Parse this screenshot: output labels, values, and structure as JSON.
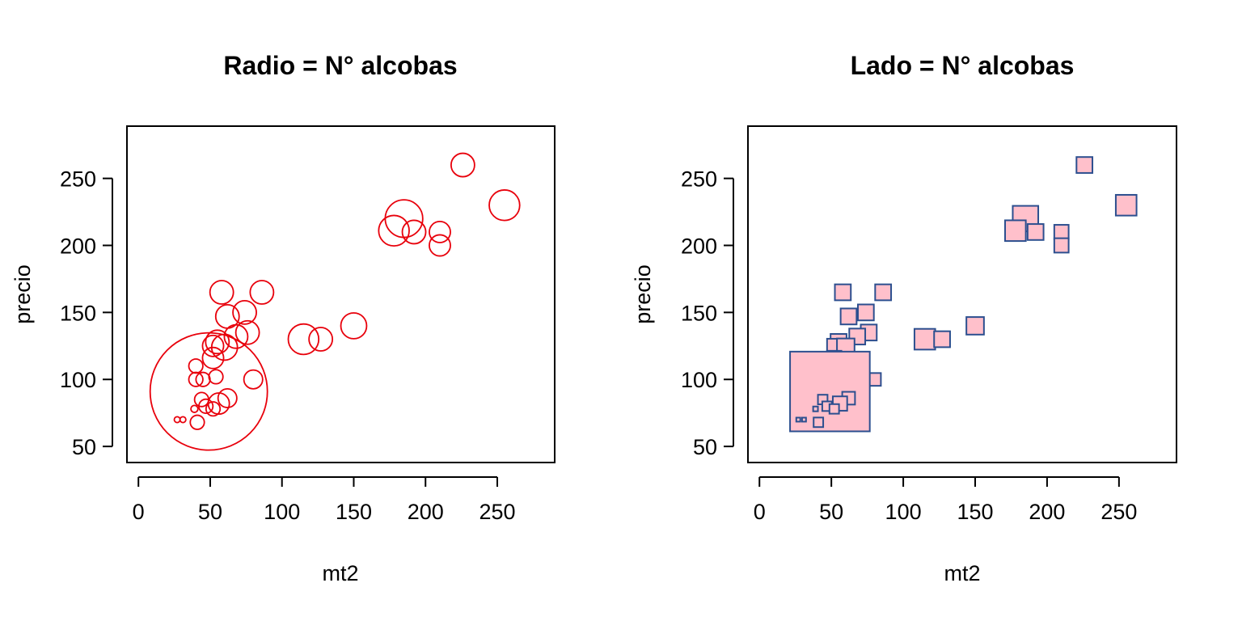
{
  "chart_data": [
    {
      "type": "scatter",
      "title": "Radio = N° alcobas",
      "xlabel": "mt2",
      "ylabel": "precio",
      "xlim": [
        -8,
        290
      ],
      "ylim": [
        38,
        289
      ],
      "xticks": [
        0,
        50,
        100,
        150,
        200,
        250
      ],
      "yticks": [
        50,
        100,
        150,
        200,
        250
      ],
      "marker": "circle",
      "size_encodes": "N° alcobas",
      "color": "#e8000b",
      "fill": "none",
      "points": [
        {
          "x": 226,
          "y": 260,
          "s": 1.0
        },
        {
          "x": 255,
          "y": 230,
          "s": 1.3
        },
        {
          "x": 185,
          "y": 220,
          "s": 1.6
        },
        {
          "x": 178,
          "y": 211,
          "s": 1.3
        },
        {
          "x": 192,
          "y": 210,
          "s": 1.0
        },
        {
          "x": 210,
          "y": 210,
          "s": 0.9
        },
        {
          "x": 210,
          "y": 200,
          "s": 0.9
        },
        {
          "x": 58,
          "y": 165,
          "s": 1.0
        },
        {
          "x": 86,
          "y": 165,
          "s": 1.0
        },
        {
          "x": 74,
          "y": 150,
          "s": 1.0
        },
        {
          "x": 62,
          "y": 147,
          "s": 1.0
        },
        {
          "x": 150,
          "y": 140,
          "s": 1.1
        },
        {
          "x": 76,
          "y": 135,
          "s": 1.0
        },
        {
          "x": 68,
          "y": 132,
          "s": 1.0
        },
        {
          "x": 115,
          "y": 130,
          "s": 1.3
        },
        {
          "x": 127,
          "y": 130,
          "s": 1.0
        },
        {
          "x": 55,
          "y": 128,
          "s": 1.0
        },
        {
          "x": 52,
          "y": 125,
          "s": 0.9
        },
        {
          "x": 60,
          "y": 124,
          "s": 1.1
        },
        {
          "x": 52,
          "y": 116,
          "s": 0.9
        },
        {
          "x": 40,
          "y": 110,
          "s": 0.6
        },
        {
          "x": 54,
          "y": 102,
          "s": 0.6
        },
        {
          "x": 40,
          "y": 100,
          "s": 0.6
        },
        {
          "x": 45,
          "y": 100,
          "s": 0.6
        },
        {
          "x": 80,
          "y": 100,
          "s": 0.8
        },
        {
          "x": 49,
          "y": 91,
          "s": 5.0
        },
        {
          "x": 62,
          "y": 86,
          "s": 0.8
        },
        {
          "x": 44,
          "y": 85,
          "s": 0.6
        },
        {
          "x": 56,
          "y": 82,
          "s": 0.9
        },
        {
          "x": 47,
          "y": 80,
          "s": 0.6
        },
        {
          "x": 52,
          "y": 78,
          "s": 0.6
        },
        {
          "x": 39,
          "y": 78,
          "s": 0.3
        },
        {
          "x": 41,
          "y": 68,
          "s": 0.6
        },
        {
          "x": 27,
          "y": 70,
          "s": 0.25
        },
        {
          "x": 31,
          "y": 70,
          "s": 0.25
        }
      ]
    },
    {
      "type": "scatter",
      "title": "Lado = N° alcobas",
      "xlabel": "mt2",
      "ylabel": "precio",
      "xlim": [
        -8,
        290
      ],
      "ylim": [
        38,
        289
      ],
      "xticks": [
        0,
        50,
        100,
        150,
        200,
        250
      ],
      "yticks": [
        50,
        100,
        150,
        200,
        250
      ],
      "marker": "square",
      "size_encodes": "N° alcobas",
      "color": "#2c4f8f",
      "fill": "#ffc0cb",
      "points": [
        {
          "x": 226,
          "y": 260,
          "s": 1.0
        },
        {
          "x": 255,
          "y": 230,
          "s": 1.3
        },
        {
          "x": 185,
          "y": 220,
          "s": 1.6
        },
        {
          "x": 178,
          "y": 211,
          "s": 1.3
        },
        {
          "x": 192,
          "y": 210,
          "s": 1.0
        },
        {
          "x": 210,
          "y": 210,
          "s": 0.9
        },
        {
          "x": 210,
          "y": 200,
          "s": 0.9
        },
        {
          "x": 58,
          "y": 165,
          "s": 1.0
        },
        {
          "x": 86,
          "y": 165,
          "s": 1.0
        },
        {
          "x": 74,
          "y": 150,
          "s": 1.0
        },
        {
          "x": 62,
          "y": 147,
          "s": 1.0
        },
        {
          "x": 150,
          "y": 140,
          "s": 1.1
        },
        {
          "x": 76,
          "y": 135,
          "s": 1.0
        },
        {
          "x": 68,
          "y": 132,
          "s": 1.0
        },
        {
          "x": 115,
          "y": 130,
          "s": 1.3
        },
        {
          "x": 127,
          "y": 130,
          "s": 1.0
        },
        {
          "x": 55,
          "y": 128,
          "s": 1.0
        },
        {
          "x": 52,
          "y": 125,
          "s": 0.9
        },
        {
          "x": 60,
          "y": 124,
          "s": 1.1
        },
        {
          "x": 52,
          "y": 116,
          "s": 0.9
        },
        {
          "x": 40,
          "y": 110,
          "s": 0.6
        },
        {
          "x": 54,
          "y": 102,
          "s": 0.6
        },
        {
          "x": 40,
          "y": 100,
          "s": 0.6
        },
        {
          "x": 45,
          "y": 100,
          "s": 0.6
        },
        {
          "x": 80,
          "y": 100,
          "s": 0.8
        },
        {
          "x": 49,
          "y": 91,
          "s": 5.0
        },
        {
          "x": 62,
          "y": 86,
          "s": 0.8
        },
        {
          "x": 44,
          "y": 85,
          "s": 0.6
        },
        {
          "x": 56,
          "y": 82,
          "s": 0.9
        },
        {
          "x": 47,
          "y": 80,
          "s": 0.6
        },
        {
          "x": 52,
          "y": 78,
          "s": 0.6
        },
        {
          "x": 39,
          "y": 78,
          "s": 0.3
        },
        {
          "x": 41,
          "y": 68,
          "s": 0.6
        },
        {
          "x": 27,
          "y": 70,
          "s": 0.25
        },
        {
          "x": 31,
          "y": 70,
          "s": 0.25
        }
      ]
    }
  ]
}
